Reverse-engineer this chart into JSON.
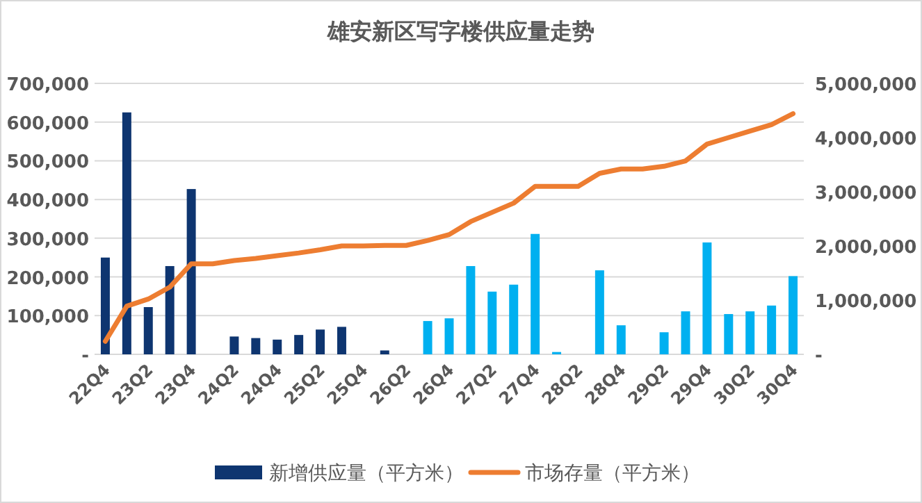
{
  "chart_data": {
    "type": "bar",
    "title": "雄安新区写字楼供应量走势",
    "categories": [
      "22Q4",
      null,
      "23Q2",
      null,
      "23Q4",
      null,
      "24Q2",
      null,
      "24Q4",
      null,
      "25Q2",
      null,
      "25Q4",
      null,
      "26Q2",
      null,
      "26Q4",
      null,
      "27Q2",
      null,
      "27Q4",
      null,
      "28Q2",
      null,
      "28Q4",
      null,
      "29Q2",
      null,
      "29Q4",
      null,
      "30Q2",
      null,
      "30Q4"
    ],
    "series": [
      {
        "name": "新增供应量（平方米）",
        "colors": [
          "#0e3570",
          "#0e3570",
          "#0e3570",
          "#0e3570",
          "#0e3570",
          "#0e3570",
          "#0e3570",
          "#0e3570",
          "#0e3570",
          "#0e3570",
          "#0e3570",
          "#0e3570",
          "#0e3570",
          "#0e3570",
          "#0e3570",
          "#00b0f0",
          "#00b0f0",
          "#00b0f0",
          "#00b0f0",
          "#00b0f0",
          "#00b0f0",
          "#00b0f0",
          "#00b0f0",
          "#00b0f0",
          "#00b0f0",
          "#00b0f0",
          "#00b0f0",
          "#00b0f0",
          "#00b0f0",
          "#00b0f0",
          "#00b0f0",
          "#00b0f0",
          "#00b0f0"
        ],
        "values": [
          250000,
          625000,
          122000,
          228000,
          427000,
          0,
          46000,
          42000,
          38000,
          50000,
          64000,
          71000,
          0,
          10000,
          0,
          86000,
          93000,
          228000,
          162000,
          180000,
          311000,
          6000,
          0,
          217000,
          75000,
          0,
          57000,
          111000,
          289000,
          104000,
          111000,
          126000,
          202000
        ]
      },
      {
        "name": "市场存量（平方米）",
        "type": "line",
        "axis": "y2",
        "color": "#ed7d31",
        "values": [
          240000,
          890000,
          1020000,
          1240000,
          1670000,
          1670000,
          1730000,
          1770000,
          1820000,
          1870000,
          1930000,
          2000000,
          2000000,
          2010000,
          2010000,
          2100000,
          2210000,
          2450000,
          2620000,
          2790000,
          3100000,
          3100000,
          3100000,
          3340000,
          3420000,
          3420000,
          3470000,
          3570000,
          3880000,
          4000000,
          4120000,
          4240000,
          4440000
        ]
      }
    ],
    "ylim": [
      0,
      700000
    ],
    "yticks": [
      {
        "value": 0,
        "label": "-"
      },
      {
        "value": 100000,
        "label": "100,000"
      },
      {
        "value": 200000,
        "label": "200,000"
      },
      {
        "value": 300000,
        "label": "300,000"
      },
      {
        "value": 400000,
        "label": "400,000"
      },
      {
        "value": 500000,
        "label": "500,000"
      },
      {
        "value": 600000,
        "label": "600,000"
      },
      {
        "value": 700000,
        "label": "700,000"
      }
    ],
    "y2lim": [
      0,
      5000000
    ],
    "y2ticks": [
      {
        "value": 0,
        "label": "-"
      },
      {
        "value": 1000000,
        "label": "1,000,000"
      },
      {
        "value": 2000000,
        "label": "2,000,000"
      },
      {
        "value": 3000000,
        "label": "3,000,000"
      },
      {
        "value": 4000000,
        "label": "4,000,000"
      },
      {
        "value": 5000000,
        "label": "5,000,000"
      }
    ],
    "grid": "y",
    "legend": "bottom"
  }
}
